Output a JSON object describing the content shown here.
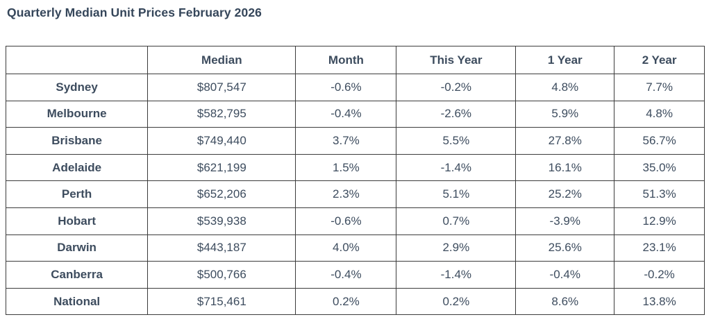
{
  "page": {
    "heading": "Quarterly Median Unit Prices February 2026"
  },
  "colors": {
    "text": "#3d4c5e",
    "heading_text": "#35465a",
    "border": "#3b3b3b",
    "background": "#ffffff"
  },
  "chart_data": {
    "type": "table",
    "title": "Quarterly Median Unit Prices February 2026",
    "columns": [
      "",
      "Median",
      "Month",
      "This Year",
      "1 Year",
      "2 Year"
    ],
    "rows": [
      [
        "Sydney",
        "$807,547",
        "-0.6%",
        "-0.2%",
        "4.8%",
        "7.7%"
      ],
      [
        "Melbourne",
        "$582,795",
        "-0.4%",
        "-2.6%",
        "5.9%",
        "4.8%"
      ],
      [
        "Brisbane",
        "$749,440",
        "3.7%",
        "5.5%",
        "27.8%",
        "56.7%"
      ],
      [
        "Adelaide",
        "$621,199",
        "1.5%",
        "-1.4%",
        "16.1%",
        "35.0%"
      ],
      [
        "Perth",
        "$652,206",
        "2.3%",
        "5.1%",
        "25.2%",
        "51.3%"
      ],
      [
        "Hobart",
        "$539,938",
        "-0.6%",
        "0.7%",
        "-3.9%",
        "12.9%"
      ],
      [
        "Darwin",
        "$443,187",
        "4.0%",
        "2.9%",
        "25.6%",
        "23.1%"
      ],
      [
        "Canberra",
        "$500,766",
        "-0.4%",
        "-1.4%",
        "-0.4%",
        "-0.2%"
      ],
      [
        "National",
        "$715,461",
        "0.2%",
        "0.2%",
        "8.6%",
        "13.8%"
      ]
    ]
  }
}
